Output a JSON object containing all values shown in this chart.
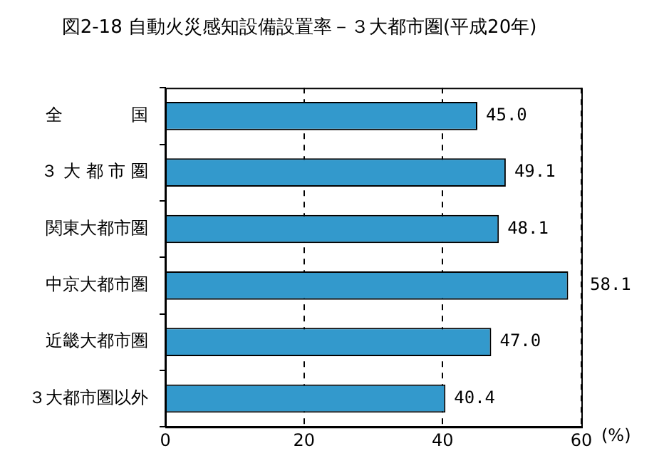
{
  "chart_data": {
    "type": "bar",
    "orientation": "horizontal",
    "title": "図2-18 自動火災感知設備設置率－３大都市圏(平成20年)",
    "categories": [
      "全　　　　国",
      "３ 大 都 市 圏",
      "関東大都市圏",
      "中京大都市圏",
      "近畿大都市圏",
      "３大都市圏以外"
    ],
    "values": [
      45.0,
      49.1,
      48.1,
      58.1,
      47.0,
      40.4
    ],
    "value_labels": [
      "45.0",
      "49.1",
      "48.1",
      "58.1",
      "47.0",
      "40.4"
    ],
    "color": "#3399cc",
    "xlim": [
      0,
      60
    ],
    "xticks": [
      0,
      20,
      40,
      60
    ],
    "xlabel": "(%)",
    "grid": "x",
    "legend": false
  }
}
